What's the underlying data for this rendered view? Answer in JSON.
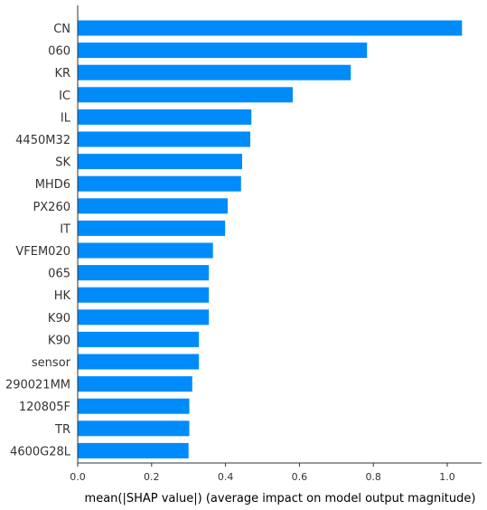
{
  "chart_data": {
    "type": "bar",
    "orientation": "horizontal",
    "categories": [
      "CN",
      "060",
      "KR",
      "IC",
      "IL",
      "4450M32",
      "SK",
      "MHD6",
      "PX260",
      "IT",
      "VFEM020",
      "065",
      "HK",
      "K90",
      "K90",
      "sensor",
      "290021MM",
      "120805F",
      "TR",
      "4600G28L"
    ],
    "values": [
      1.04,
      0.783,
      0.739,
      0.582,
      0.47,
      0.467,
      0.445,
      0.442,
      0.406,
      0.399,
      0.366,
      0.355,
      0.355,
      0.355,
      0.328,
      0.328,
      0.31,
      0.302,
      0.302,
      0.3
    ],
    "xlabel": "mean(|SHAP value|) (average impact on model output magnitude)",
    "ylabel": "",
    "xlim": [
      0,
      1.09
    ],
    "xticks": [
      "0.0",
      "0.2",
      "0.4",
      "0.6",
      "0.8",
      "1.0"
    ],
    "grid": false,
    "bar_color": "#008bfb"
  }
}
